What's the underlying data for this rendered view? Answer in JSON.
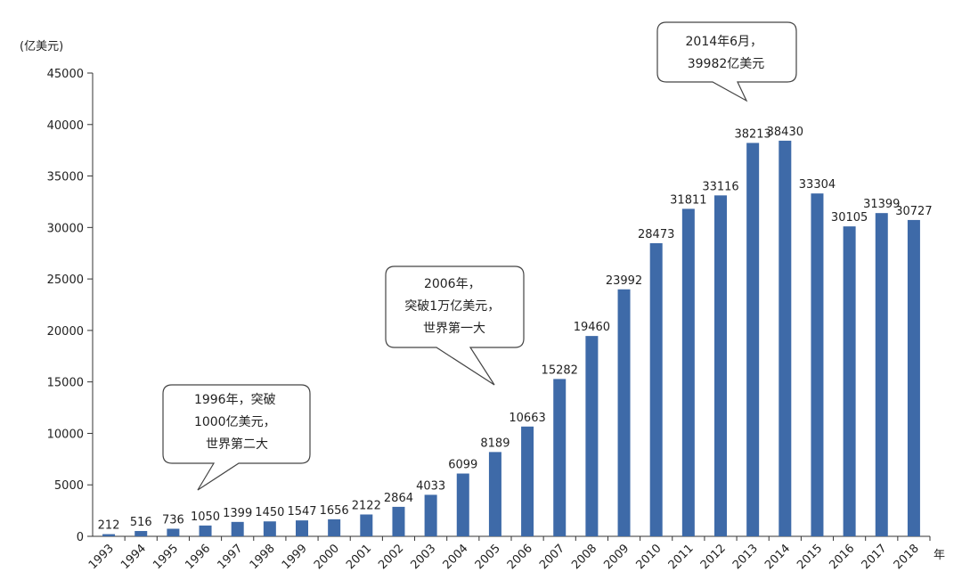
{
  "chart_data": {
    "type": "bar",
    "ylabel": "(亿美元)",
    "xunit": "年",
    "ylim": [
      0,
      45000
    ],
    "yticks": [
      0,
      5000,
      10000,
      15000,
      20000,
      25000,
      30000,
      35000,
      40000,
      45000
    ],
    "grid": false,
    "bar_color": "#3e6aa8",
    "categories": [
      "1993",
      "1994",
      "1995",
      "1996",
      "1997",
      "1998",
      "1999",
      "2000",
      "2001",
      "2002",
      "2003",
      "2004",
      "2005",
      "2006",
      "2007",
      "2008",
      "2009",
      "2010",
      "2011",
      "2012",
      "2013",
      "2014",
      "2015",
      "2016",
      "2017",
      "2018"
    ],
    "values": [
      212,
      516,
      736,
      1050,
      1399,
      1450,
      1547,
      1656,
      2122,
      2864,
      4033,
      6099,
      8189,
      10663,
      15282,
      19460,
      23992,
      28473,
      31811,
      33116,
      38213,
      38430,
      33304,
      30105,
      31399,
      30727
    ],
    "annotations": [
      {
        "lines": [
          "1996年，突破",
          "1000亿美元，",
          "世界第二大"
        ]
      },
      {
        "lines": [
          "2006年，",
          "突破1万亿美元，",
          "世界第一大"
        ]
      },
      {
        "lines": [
          "2014年6月，",
          "39982亿美元"
        ]
      }
    ]
  }
}
